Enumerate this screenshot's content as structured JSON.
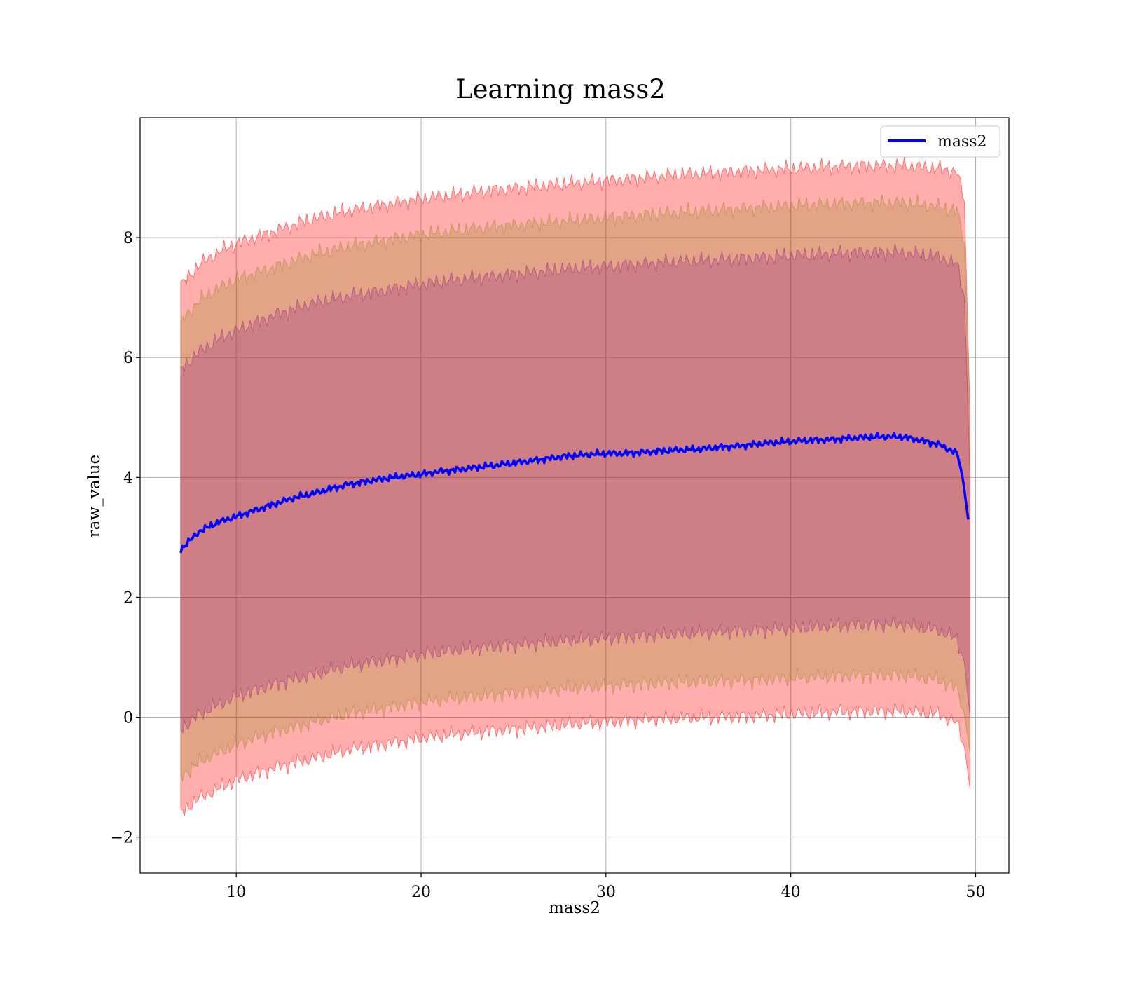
{
  "chart_data": {
    "type": "line",
    "title": "Learning mass2",
    "xlabel": "mass2",
    "ylabel": "raw_value",
    "xlim": [
      4.8,
      51.8
    ],
    "ylim": [
      -2.6,
      10.0
    ],
    "xticks": [
      10,
      20,
      30,
      40,
      50
    ],
    "yticks": [
      -2,
      0,
      2,
      4,
      6,
      8
    ],
    "xtick_labels": [
      "10",
      "20",
      "30",
      "40",
      "50"
    ],
    "ytick_labels": [
      "−2",
      "0",
      "2",
      "4",
      "6",
      "8"
    ],
    "grid": true,
    "legend_position": "top-right",
    "series": [
      {
        "name": "mass2",
        "color": "#0000ff",
        "x": [
          7.0,
          8.0,
          9.0,
          10.0,
          11.0,
          12.0,
          13.0,
          14.0,
          15.0,
          16.0,
          17.0,
          18.0,
          19.0,
          20.0,
          21.0,
          22.0,
          23.0,
          24.0,
          25.0,
          26.0,
          27.0,
          28.0,
          29.0,
          30.0,
          31.0,
          32.0,
          33.0,
          34.0,
          35.0,
          36.0,
          37.0,
          38.0,
          39.0,
          40.0,
          41.0,
          42.0,
          43.0,
          44.0,
          45.0,
          46.0,
          47.0,
          48.0,
          49.0,
          49.3,
          49.6
        ],
        "y": [
          2.8,
          3.1,
          3.25,
          3.35,
          3.45,
          3.55,
          3.65,
          3.72,
          3.8,
          3.88,
          3.93,
          3.98,
          4.02,
          4.05,
          4.1,
          4.13,
          4.17,
          4.2,
          4.24,
          4.28,
          4.32,
          4.36,
          4.38,
          4.4,
          4.4,
          4.42,
          4.44,
          4.46,
          4.47,
          4.5,
          4.52,
          4.55,
          4.58,
          4.6,
          4.62,
          4.63,
          4.65,
          4.67,
          4.68,
          4.68,
          4.62,
          4.55,
          4.4,
          4.0,
          3.3
        ]
      }
    ],
    "bands": [
      {
        "color": "#ff0000",
        "opacity": 0.32,
        "x": [
          7.0,
          8.0,
          9.0,
          10.0,
          12.0,
          14.0,
          16.0,
          18.0,
          20.0,
          22.0,
          24.0,
          26.0,
          28.0,
          30.0,
          32.0,
          34.0,
          36.0,
          38.0,
          40.0,
          42.0,
          44.0,
          46.0,
          48.0,
          49.0,
          49.4,
          49.7
        ],
        "upper": [
          7.2,
          7.55,
          7.75,
          7.9,
          8.1,
          8.3,
          8.45,
          8.55,
          8.65,
          8.72,
          8.8,
          8.85,
          8.9,
          8.95,
          9.0,
          9.05,
          9.08,
          9.12,
          9.15,
          9.18,
          9.2,
          9.2,
          9.15,
          9.1,
          8.6,
          5.0
        ],
        "lower": [
          -1.6,
          -1.35,
          -1.2,
          -1.05,
          -0.85,
          -0.7,
          -0.55,
          -0.45,
          -0.35,
          -0.28,
          -0.22,
          -0.18,
          -0.12,
          -0.08,
          -0.04,
          -0.02,
          0.0,
          0.02,
          0.05,
          0.08,
          0.1,
          0.1,
          0.05,
          -0.1,
          -0.5,
          -1.2
        ]
      },
      {
        "color": "#808000",
        "opacity": 0.22,
        "x": [
          7.0,
          8.0,
          9.0,
          10.0,
          12.0,
          14.0,
          16.0,
          18.0,
          20.0,
          22.0,
          24.0,
          26.0,
          28.0,
          30.0,
          32.0,
          34.0,
          36.0,
          38.0,
          40.0,
          42.0,
          44.0,
          46.0,
          48.0,
          49.0,
          49.4,
          49.7
        ],
        "upper": [
          6.6,
          6.95,
          7.15,
          7.3,
          7.5,
          7.7,
          7.85,
          7.95,
          8.05,
          8.12,
          8.18,
          8.23,
          8.28,
          8.33,
          8.38,
          8.42,
          8.46,
          8.5,
          8.53,
          8.56,
          8.58,
          8.58,
          8.52,
          8.45,
          7.9,
          4.5
        ],
        "lower": [
          -1.0,
          -0.75,
          -0.6,
          -0.45,
          -0.25,
          -0.1,
          0.05,
          0.15,
          0.25,
          0.32,
          0.38,
          0.43,
          0.48,
          0.52,
          0.56,
          0.58,
          0.6,
          0.62,
          0.65,
          0.68,
          0.7,
          0.7,
          0.62,
          0.48,
          0.05,
          -0.6
        ]
      },
      {
        "color": "#800080",
        "opacity": 0.22,
        "x": [
          7.0,
          8.0,
          9.0,
          10.0,
          12.0,
          14.0,
          16.0,
          18.0,
          20.0,
          22.0,
          24.0,
          26.0,
          28.0,
          30.0,
          32.0,
          34.0,
          36.0,
          38.0,
          40.0,
          42.0,
          44.0,
          46.0,
          48.0,
          49.0,
          49.4,
          49.7
        ],
        "upper": [
          5.8,
          6.1,
          6.3,
          6.45,
          6.7,
          6.9,
          7.02,
          7.12,
          7.22,
          7.3,
          7.36,
          7.42,
          7.48,
          7.52,
          7.56,
          7.6,
          7.63,
          7.66,
          7.7,
          7.73,
          7.76,
          7.75,
          7.68,
          7.55,
          7.0,
          4.0
        ],
        "lower": [
          -0.2,
          0.05,
          0.2,
          0.35,
          0.55,
          0.7,
          0.85,
          0.95,
          1.05,
          1.12,
          1.18,
          1.23,
          1.28,
          1.32,
          1.36,
          1.39,
          1.42,
          1.45,
          1.48,
          1.52,
          1.55,
          1.55,
          1.45,
          1.3,
          0.9,
          0.0
        ]
      }
    ]
  }
}
